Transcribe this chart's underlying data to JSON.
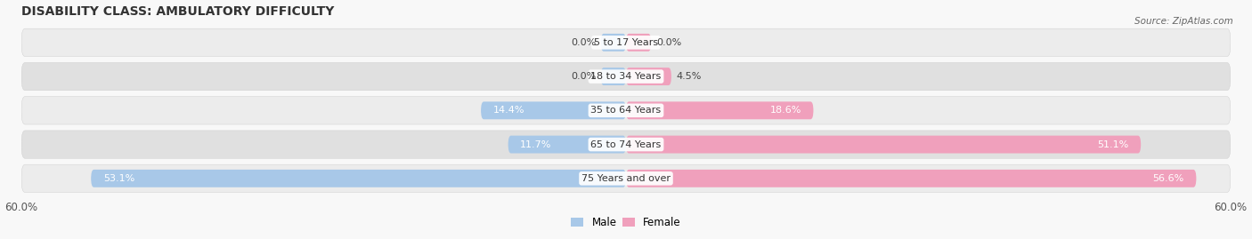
{
  "title": "DISABILITY CLASS: AMBULATORY DIFFICULTY",
  "source": "Source: ZipAtlas.com",
  "categories": [
    "5 to 17 Years",
    "18 to 34 Years",
    "35 to 64 Years",
    "65 to 74 Years",
    "75 Years and over"
  ],
  "male_values": [
    0.0,
    0.0,
    14.4,
    11.7,
    53.1
  ],
  "female_values": [
    0.0,
    4.5,
    18.6,
    51.1,
    56.6
  ],
  "max_val": 60.0,
  "male_color": "#a8c8e8",
  "female_color": "#f0a0bc",
  "row_bg_light": "#ececec",
  "row_bg_dark": "#e0e0e0",
  "title_fontsize": 10,
  "label_fontsize": 8,
  "val_fontsize": 8,
  "axis_label_fontsize": 8.5,
  "legend_fontsize": 8.5,
  "background_color": "#f8f8f8"
}
